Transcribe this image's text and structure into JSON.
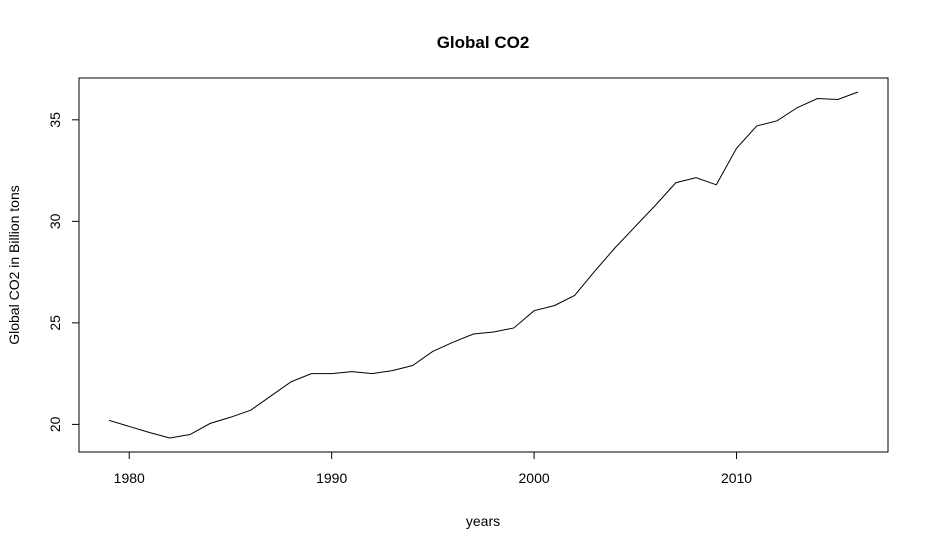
{
  "chart_data": {
    "type": "line",
    "title": "Global CO2",
    "xlabel": "years",
    "ylabel": "Global CO2 in Billion tons",
    "xlim": [
      1979,
      2016
    ],
    "ylim": [
      19.33,
      36.37
    ],
    "xticks": [
      1980,
      1990,
      2000,
      2010
    ],
    "yticks": [
      20,
      25,
      30,
      35
    ],
    "grid": false,
    "line_color": "#000000",
    "series": [
      {
        "x": [
          1979,
          1980,
          1981,
          1982,
          1983,
          1984,
          1985,
          1986,
          1987,
          1988,
          1989,
          1990,
          1991,
          1992,
          1993,
          1994,
          1995,
          1996,
          1997,
          1998,
          1999,
          2000,
          2001,
          2002,
          2003,
          2004,
          2005,
          2006,
          2007,
          2008,
          2009,
          2010,
          2011,
          2012,
          2013,
          2014,
          2015,
          2016
        ],
        "y": [
          20.2,
          19.9,
          19.6,
          19.33,
          19.5,
          20.05,
          20.35,
          20.7,
          21.4,
          22.1,
          22.5,
          22.5,
          22.6,
          22.5,
          22.65,
          22.9,
          23.6,
          24.05,
          24.45,
          24.55,
          24.75,
          25.6,
          25.85,
          26.35,
          27.55,
          28.7,
          29.75,
          30.8,
          31.9,
          32.15,
          31.8,
          33.6,
          34.7,
          34.95,
          35.6,
          36.05,
          36.0,
          36.37
        ]
      }
    ]
  }
}
